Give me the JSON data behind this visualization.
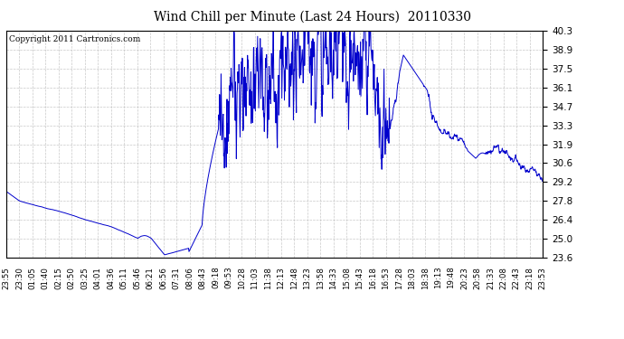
{
  "title": "Wind Chill per Minute (Last 24 Hours)  20110330",
  "copyright": "Copyright 2011 Cartronics.com",
  "line_color": "#0000cc",
  "background_color": "#ffffff",
  "plot_bg_color": "#ffffff",
  "grid_color": "#bbbbbb",
  "yticks": [
    23.6,
    25.0,
    26.4,
    27.8,
    29.2,
    30.6,
    31.9,
    33.3,
    34.7,
    36.1,
    37.5,
    38.9,
    40.3
  ],
  "ylim": [
    23.6,
    40.3
  ],
  "xtick_labels": [
    "23:55",
    "23:30",
    "01:05",
    "01:40",
    "02:15",
    "02:50",
    "03:25",
    "04:01",
    "04:36",
    "05:11",
    "05:46",
    "06:21",
    "06:56",
    "07:31",
    "08:06",
    "08:43",
    "09:18",
    "09:53",
    "10:28",
    "11:03",
    "11:38",
    "12:13",
    "12:48",
    "13:23",
    "13:58",
    "14:33",
    "15:08",
    "15:43",
    "16:18",
    "16:53",
    "17:28",
    "18:03",
    "18:38",
    "19:13",
    "19:48",
    "20:23",
    "20:58",
    "21:33",
    "22:08",
    "22:43",
    "23:18",
    "23:53"
  ],
  "num_points": 1440
}
